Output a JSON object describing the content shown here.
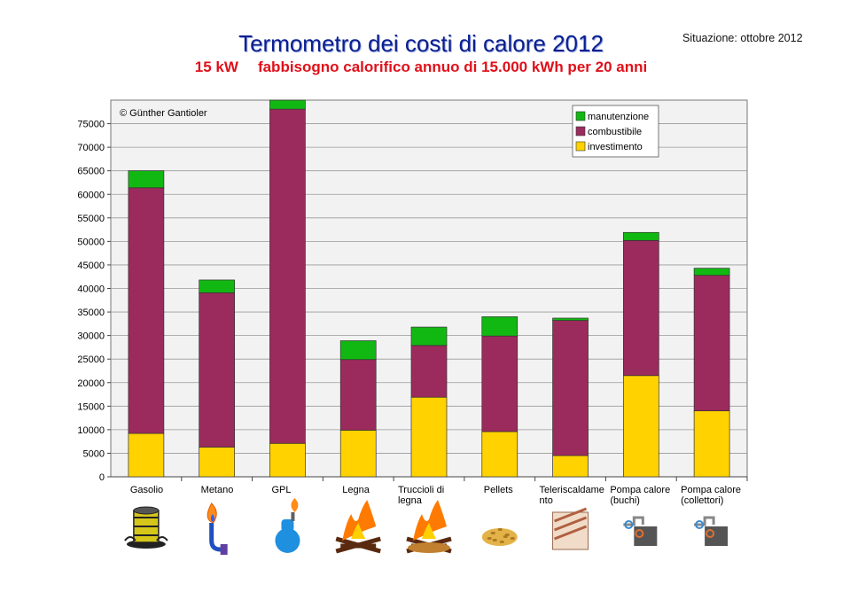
{
  "header": {
    "title": "Termometro dei costi di calore 2012",
    "subtitle_power": "15 kW",
    "subtitle_rest": "fabbisogno calorifico annuo di 15.000 kWh per 20 anni",
    "status": "Situazione: ottobre 2012",
    "copyright": "© Günther Gantioler"
  },
  "colors": {
    "manutenzione": "#12b812",
    "combustibile": "#9b2b5c",
    "investimento": "#ffd200",
    "plot_bg": "#f2f2f2",
    "grid": "#9a9a9a"
  },
  "chart_data": {
    "type": "bar",
    "stacked": true,
    "categories": [
      "Gasolio",
      "Metano",
      "GPL",
      "Legna",
      "Truccioli di legna",
      "Pellets",
      "Teleriscaldamento",
      "Pompa calore (buchi)",
      "Pompa calore (collettori)"
    ],
    "category_label_lines": [
      [
        "Gasolio"
      ],
      [
        "Metano"
      ],
      [
        "GPL"
      ],
      [
        "Legna"
      ],
      [
        "Truccioli di",
        "legna"
      ],
      [
        "Pellets"
      ],
      [
        "Teleriscaldame",
        "nto"
      ],
      [
        "Pompa calore",
        "(buchi)"
      ],
      [
        "Pompa calore",
        "(collettori)"
      ]
    ],
    "series": [
      {
        "name": "investimento",
        "values": [
          9200,
          6300,
          7100,
          9900,
          16900,
          9600,
          4500,
          21500,
          14000
        ]
      },
      {
        "name": "combustibile",
        "values": [
          52200,
          32800,
          71000,
          15000,
          11000,
          20300,
          28700,
          28700,
          28800
        ]
      },
      {
        "name": "manutenzione",
        "values": [
          3600,
          2700,
          1900,
          4000,
          3900,
          4100,
          500,
          1700,
          1500
        ]
      }
    ],
    "legend_order": [
      "manutenzione",
      "combustibile",
      "investimento"
    ],
    "legend_position": "top-right",
    "ylim": [
      0,
      80000
    ],
    "yticks": [
      0,
      5000,
      10000,
      15000,
      20000,
      25000,
      30000,
      35000,
      40000,
      45000,
      50000,
      55000,
      60000,
      65000,
      70000,
      75000
    ],
    "grid": true,
    "icons": [
      "oil-barrel-icon",
      "gas-flame-icon",
      "gpl-tank-icon",
      "firewood-icon",
      "wood-chips-fire-icon",
      "pellets-icon",
      "district-heating-pipes-icon",
      "heat-pump-icon",
      "heat-pump-collector-icon"
    ]
  }
}
